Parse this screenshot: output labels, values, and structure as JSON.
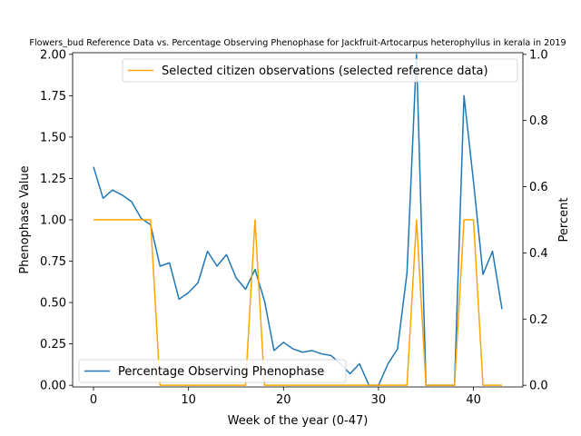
{
  "chart_data": {
    "type": "line",
    "title": "Flowers_bud Reference Data vs. Percentage Observing Phenophase for Jackfruit-Artocarpus heterophyllus in kerala in 2019",
    "xlabel": "Week of the year (0-47)",
    "ylabel_left": "Phenophase Value",
    "ylabel_right": "Percent",
    "xlim": [
      -2.2,
      45.2
    ],
    "ylim_left": [
      -0.01,
      2.01
    ],
    "ylim_right": [
      -0.005,
      1.005
    ],
    "x_ticks": [
      0,
      10,
      20,
      30,
      40
    ],
    "y_ticks_left": [
      "0.00",
      "0.25",
      "0.50",
      "0.75",
      "1.00",
      "1.25",
      "1.50",
      "1.75",
      "2.00"
    ],
    "y_ticks_right": [
      "0.0",
      "0.2",
      "0.4",
      "0.6",
      "0.8",
      "1.0"
    ],
    "series": [
      {
        "name": "Percentage Observing Phenophase",
        "axis": "left",
        "color": "#1f77b4",
        "x": [
          0,
          1,
          2,
          3,
          4,
          5,
          6,
          7,
          8,
          9,
          10,
          11,
          12,
          13,
          14,
          15,
          16,
          17,
          18,
          19,
          20,
          21,
          22,
          23,
          24,
          25,
          26,
          27,
          28,
          29,
          30,
          31,
          32,
          33,
          34,
          35,
          36,
          37,
          38,
          39,
          40,
          41,
          42,
          43
        ],
        "y": [
          1.32,
          1.13,
          1.18,
          1.15,
          1.11,
          1.01,
          0.97,
          0.72,
          0.74,
          0.52,
          0.56,
          0.62,
          0.81,
          0.72,
          0.79,
          0.65,
          0.58,
          0.7,
          0.51,
          0.21,
          0.26,
          0.22,
          0.2,
          0.21,
          0.19,
          0.18,
          0.13,
          0.07,
          0.13,
          0.0,
          0.0,
          0.13,
          0.22,
          0.68,
          2.0,
          0.0,
          0.0,
          0.0,
          0.0,
          1.75,
          1.23,
          0.67,
          0.81,
          0.46
        ]
      },
      {
        "name": "Selected citizen observations (selected reference data)",
        "axis": "right",
        "color": "#ffa500",
        "x": [
          0,
          1,
          2,
          3,
          4,
          5,
          6,
          7,
          8,
          9,
          10,
          11,
          12,
          13,
          14,
          15,
          16,
          17,
          18,
          19,
          20,
          21,
          22,
          23,
          24,
          25,
          26,
          27,
          28,
          29,
          30,
          31,
          32,
          33,
          34,
          35,
          36,
          37,
          38,
          39,
          40,
          41,
          42,
          43
        ],
        "y": [
          0.5,
          0.5,
          0.5,
          0.5,
          0.5,
          0.5,
          0.5,
          0,
          0,
          0,
          0,
          0,
          0,
          0,
          0,
          0,
          0,
          0.5,
          0,
          0,
          0,
          0,
          0,
          0,
          0,
          0,
          0,
          0,
          0,
          0,
          0,
          0,
          0,
          0,
          0.5,
          0,
          0,
          0,
          0,
          0.5,
          0.5,
          0,
          0,
          0
        ]
      }
    ],
    "legends": {
      "top_right": "upper right",
      "bottom_left": "lower left"
    }
  }
}
